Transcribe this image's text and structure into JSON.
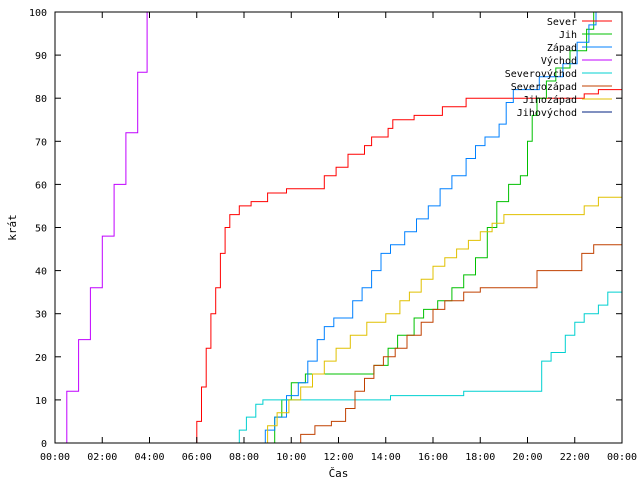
{
  "chart_data": {
    "type": "line",
    "xlabel": "Čas",
    "ylabel": "krát",
    "xlim": [
      0,
      24
    ],
    "ylim": [
      0,
      100
    ],
    "x_ticks": [
      "00:00",
      "02:00",
      "04:00",
      "06:00",
      "08:00",
      "10:00",
      "12:00",
      "14:00",
      "16:00",
      "18:00",
      "20:00",
      "22:00",
      "00:00"
    ],
    "y_ticks": [
      "0",
      "10",
      "20",
      "30",
      "40",
      "50",
      "60",
      "70",
      "80",
      "90",
      "100"
    ],
    "legend_position": "top-right",
    "grid": false,
    "series": [
      {
        "name": "Sever",
        "color": "#ff0000",
        "points": [
          [
            5.8,
            0
          ],
          [
            6.0,
            5
          ],
          [
            6.2,
            13
          ],
          [
            6.4,
            22
          ],
          [
            6.6,
            30
          ],
          [
            6.8,
            36
          ],
          [
            7.0,
            44
          ],
          [
            7.2,
            50
          ],
          [
            7.4,
            53
          ],
          [
            7.8,
            55
          ],
          [
            8.3,
            56
          ],
          [
            9.0,
            58
          ],
          [
            9.8,
            59
          ],
          [
            11.3,
            59
          ],
          [
            11.4,
            62
          ],
          [
            11.9,
            64
          ],
          [
            12.4,
            67
          ],
          [
            13.1,
            69
          ],
          [
            13.4,
            71
          ],
          [
            14.1,
            73
          ],
          [
            14.3,
            75
          ],
          [
            15.2,
            76
          ],
          [
            16.4,
            78
          ],
          [
            17.4,
            80
          ],
          [
            21.5,
            80
          ],
          [
            22.4,
            81
          ],
          [
            23.0,
            82
          ],
          [
            24.0,
            84
          ]
        ]
      },
      {
        "name": "Jih",
        "color": "#00c000",
        "points": [
          [
            9.0,
            0
          ],
          [
            9.3,
            6
          ],
          [
            9.6,
            10
          ],
          [
            10.0,
            14
          ],
          [
            10.6,
            16
          ],
          [
            13.3,
            16
          ],
          [
            13.5,
            18
          ],
          [
            14.1,
            22
          ],
          [
            14.5,
            25
          ],
          [
            15.2,
            29
          ],
          [
            15.6,
            31
          ],
          [
            16.2,
            33
          ],
          [
            16.8,
            36
          ],
          [
            17.3,
            39
          ],
          [
            17.8,
            43
          ],
          [
            18.3,
            50
          ],
          [
            18.7,
            56
          ],
          [
            19.2,
            60
          ],
          [
            19.7,
            62
          ],
          [
            20.0,
            70
          ],
          [
            20.2,
            76
          ],
          [
            20.4,
            80
          ],
          [
            20.8,
            84
          ],
          [
            21.2,
            87
          ],
          [
            21.8,
            91
          ],
          [
            22.5,
            96
          ],
          [
            22.8,
            100
          ]
        ]
      },
      {
        "name": "Západ",
        "color": "#0080ff",
        "points": [
          [
            8.6,
            0
          ],
          [
            8.9,
            3
          ],
          [
            9.3,
            6
          ],
          [
            9.8,
            11
          ],
          [
            10.3,
            14
          ],
          [
            10.7,
            19
          ],
          [
            11.1,
            24
          ],
          [
            11.4,
            27
          ],
          [
            11.8,
            29
          ],
          [
            12.6,
            33
          ],
          [
            13.0,
            36
          ],
          [
            13.4,
            40
          ],
          [
            13.8,
            44
          ],
          [
            14.2,
            46
          ],
          [
            14.8,
            49
          ],
          [
            15.3,
            52
          ],
          [
            15.8,
            55
          ],
          [
            16.3,
            59
          ],
          [
            16.8,
            62
          ],
          [
            17.4,
            66
          ],
          [
            17.8,
            69
          ],
          [
            18.2,
            71
          ],
          [
            18.8,
            74
          ],
          [
            19.1,
            79
          ],
          [
            19.4,
            82
          ],
          [
            20.5,
            85
          ],
          [
            21.5,
            88
          ],
          [
            22.1,
            93
          ],
          [
            22.6,
            97
          ],
          [
            22.9,
            100
          ]
        ]
      },
      {
        "name": "Východ",
        "color": "#c000ff",
        "points": [
          [
            0.0,
            0
          ],
          [
            0.5,
            12
          ],
          [
            1.0,
            24
          ],
          [
            1.5,
            36
          ],
          [
            2.0,
            48
          ],
          [
            2.5,
            60
          ],
          [
            3.0,
            72
          ],
          [
            3.5,
            86
          ],
          [
            3.9,
            100
          ]
        ]
      },
      {
        "name": "Severovýchod",
        "color": "#00d0d0",
        "points": [
          [
            7.6,
            0
          ],
          [
            7.8,
            3
          ],
          [
            8.1,
            6
          ],
          [
            8.5,
            9
          ],
          [
            8.8,
            10
          ],
          [
            14.1,
            10
          ],
          [
            14.2,
            11
          ],
          [
            17.2,
            11
          ],
          [
            17.3,
            12
          ],
          [
            20.4,
            12
          ],
          [
            20.6,
            19
          ],
          [
            21.0,
            21
          ],
          [
            21.6,
            25
          ],
          [
            22.0,
            28
          ],
          [
            22.4,
            30
          ],
          [
            23.0,
            32
          ],
          [
            23.4,
            35
          ],
          [
            24.0,
            36
          ]
        ]
      },
      {
        "name": "Severozápad",
        "color": "#c04000",
        "points": [
          [
            10.1,
            0
          ],
          [
            10.4,
            2
          ],
          [
            11.0,
            4
          ],
          [
            11.7,
            5
          ],
          [
            12.3,
            8
          ],
          [
            12.7,
            12
          ],
          [
            13.1,
            15
          ],
          [
            13.5,
            18
          ],
          [
            13.9,
            20
          ],
          [
            14.4,
            22
          ],
          [
            14.9,
            25
          ],
          [
            15.5,
            28
          ],
          [
            16.0,
            31
          ],
          [
            16.5,
            33
          ],
          [
            17.3,
            35
          ],
          [
            18.0,
            36
          ],
          [
            20.2,
            36
          ],
          [
            20.4,
            40
          ],
          [
            21.4,
            40
          ],
          [
            22.3,
            44
          ],
          [
            22.8,
            46
          ],
          [
            24.0,
            46
          ]
        ]
      },
      {
        "name": "Jihozápad",
        "color": "#e0c000",
        "points": [
          [
            8.7,
            0
          ],
          [
            9.0,
            4
          ],
          [
            9.4,
            7
          ],
          [
            9.9,
            10
          ],
          [
            10.4,
            13
          ],
          [
            10.9,
            16
          ],
          [
            11.4,
            19
          ],
          [
            11.9,
            22
          ],
          [
            12.5,
            25
          ],
          [
            13.2,
            28
          ],
          [
            14.0,
            30
          ],
          [
            14.6,
            33
          ],
          [
            15.0,
            35
          ],
          [
            15.5,
            38
          ],
          [
            16.0,
            41
          ],
          [
            16.5,
            43
          ],
          [
            17.0,
            45
          ],
          [
            17.5,
            47
          ],
          [
            18.0,
            49
          ],
          [
            18.5,
            51
          ],
          [
            19.0,
            53
          ],
          [
            21.5,
            53
          ],
          [
            22.4,
            55
          ],
          [
            23.0,
            57
          ],
          [
            24.0,
            57
          ]
        ]
      },
      {
        "name": "Jihovýchod",
        "color": "#002080",
        "points": [
          [
            24.0,
            84
          ]
        ]
      }
    ]
  }
}
